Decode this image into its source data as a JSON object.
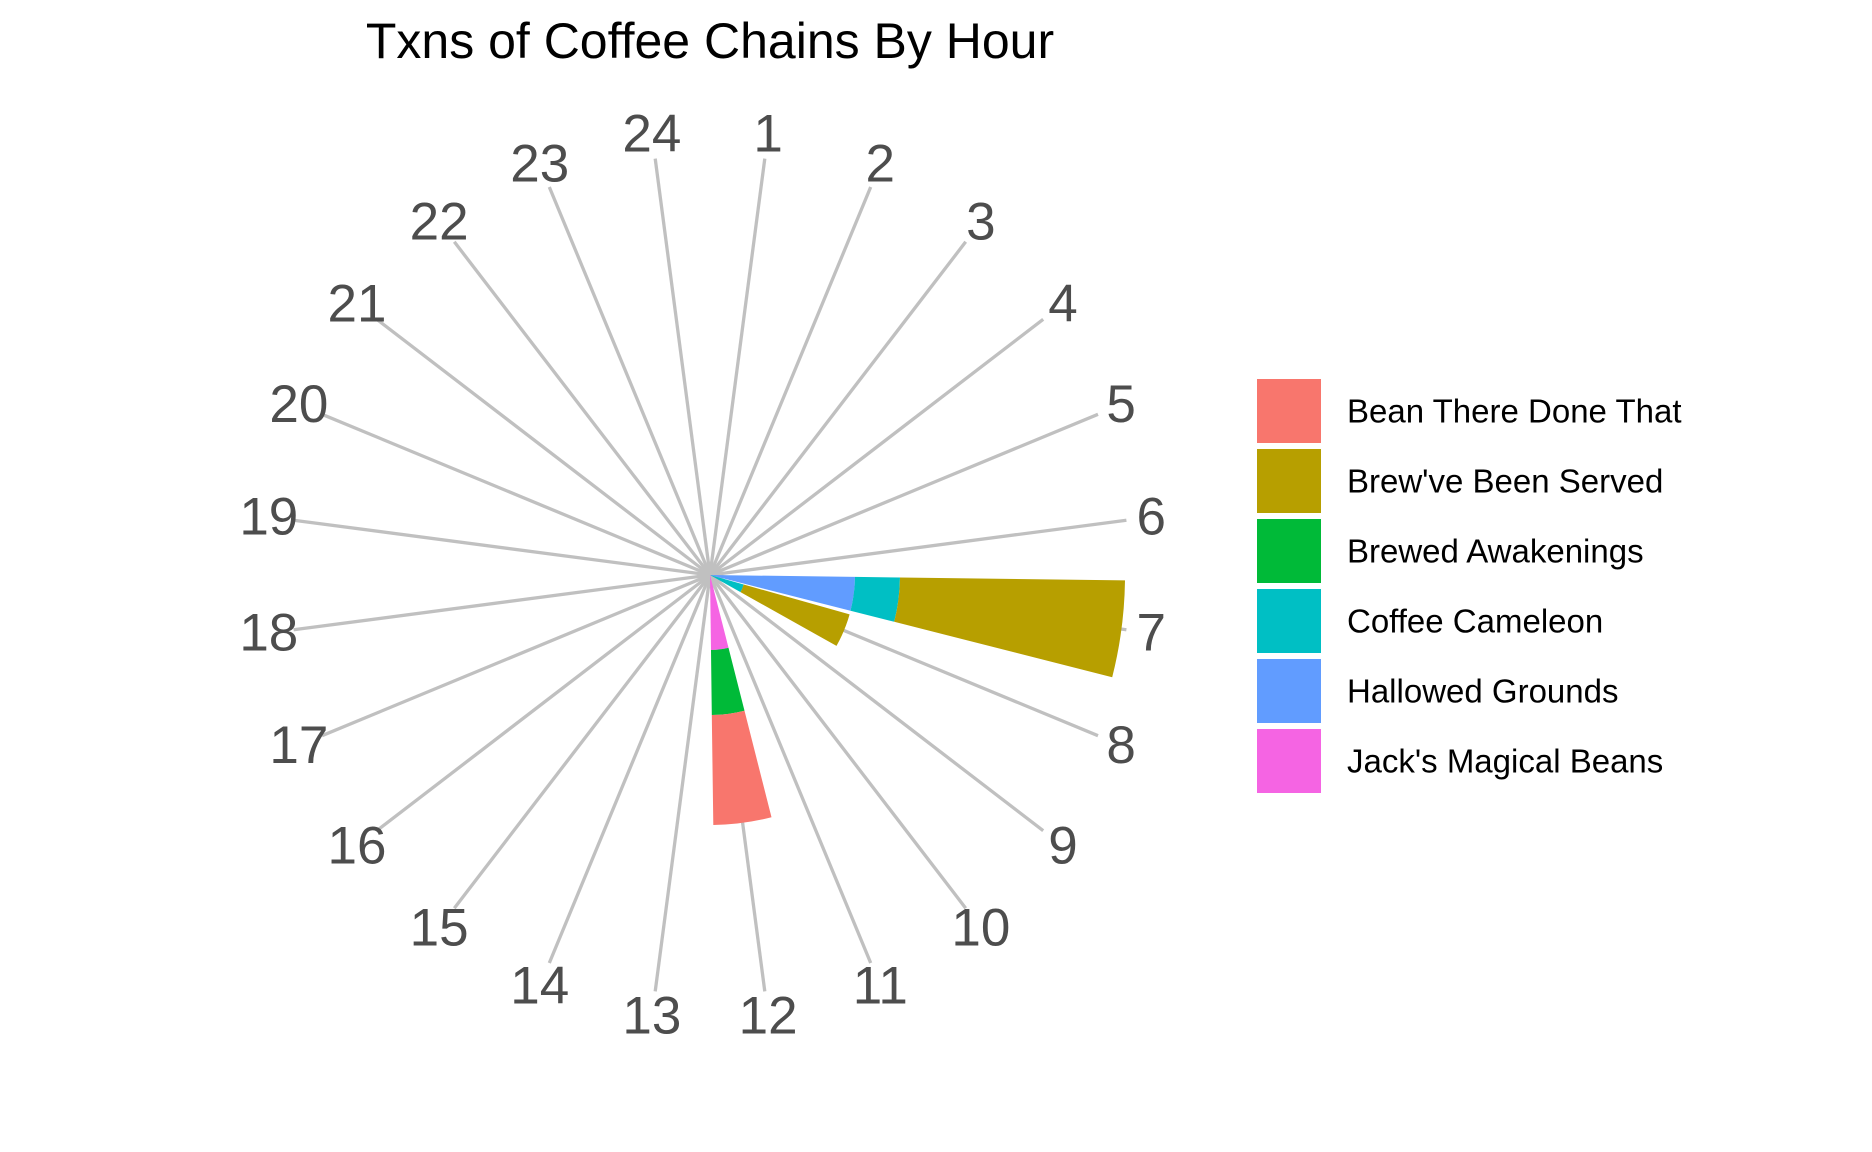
{
  "chart_data": {
    "type": "bar",
    "coord": "polar",
    "title": "Txns of Coffee Chains By Hour",
    "xlabel": "",
    "ylabel": "",
    "categories": [
      "1",
      "2",
      "3",
      "4",
      "5",
      "6",
      "7",
      "8",
      "9",
      "10",
      "11",
      "12",
      "13",
      "14",
      "15",
      "16",
      "17",
      "18",
      "19",
      "20",
      "21",
      "22",
      "23",
      "24"
    ],
    "rlim": [
      0,
      408
    ],
    "grid": true,
    "legend_position": "right",
    "stack_order": [
      "Jack's Magical Beans",
      "Hallowed Grounds",
      "Coffee Cameleon",
      "Brewed Awakenings",
      "Brew've Been Served",
      "Bean There Done That"
    ],
    "series": [
      {
        "name": "Bean There Done That",
        "color": "#F8766D",
        "values": [
          0,
          0,
          0,
          0,
          0,
          0,
          0,
          0,
          0,
          0,
          0,
          110,
          0,
          0,
          0,
          0,
          0,
          0,
          0,
          0,
          0,
          0,
          0,
          0
        ]
      },
      {
        "name": "Brew've Been Served",
        "color": "#B79F00",
        "values": [
          0,
          0,
          0,
          0,
          0,
          0,
          225,
          110,
          0,
          0,
          0,
          0,
          0,
          0,
          0,
          0,
          0,
          0,
          0,
          0,
          0,
          0,
          0,
          0
        ]
      },
      {
        "name": "Brewed Awakenings",
        "color": "#00BA38",
        "values": [
          0,
          0,
          0,
          0,
          0,
          0,
          0,
          0,
          0,
          0,
          0,
          65,
          0,
          0,
          0,
          0,
          0,
          0,
          0,
          0,
          0,
          0,
          0,
          0
        ]
      },
      {
        "name": "Coffee Cameleon",
        "color": "#00BFC4",
        "values": [
          0,
          0,
          0,
          0,
          0,
          0,
          45,
          35,
          0,
          0,
          0,
          0,
          0,
          0,
          0,
          0,
          0,
          0,
          0,
          0,
          0,
          0,
          0,
          0
        ]
      },
      {
        "name": "Hallowed Grounds",
        "color": "#619CFF",
        "values": [
          0,
          0,
          0,
          0,
          0,
          0,
          145,
          0,
          0,
          0,
          0,
          0,
          0,
          0,
          0,
          0,
          0,
          0,
          0,
          0,
          0,
          0,
          0,
          0
        ]
      },
      {
        "name": "Jack's Magical Beans",
        "color": "#F564E3",
        "values": [
          0,
          0,
          0,
          0,
          0,
          0,
          0,
          0,
          0,
          0,
          0,
          75,
          0,
          0,
          0,
          0,
          0,
          0,
          0,
          0,
          0,
          0,
          0,
          0
        ]
      }
    ]
  }
}
